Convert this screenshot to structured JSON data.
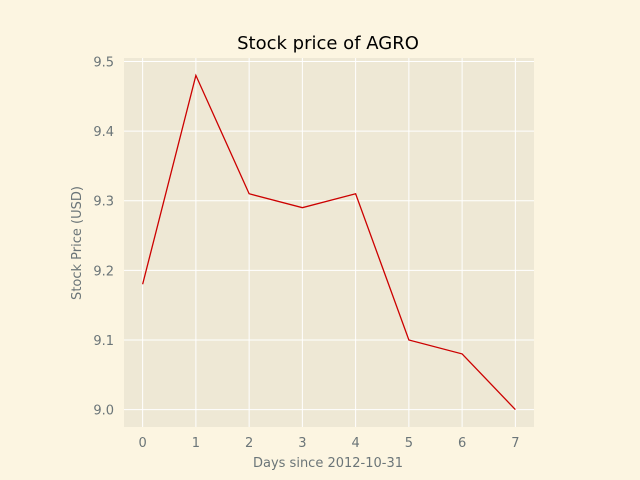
{
  "chart_data": {
    "type": "line",
    "title": "Stock price of AGRO",
    "xlabel": "Days since 2012-10-31",
    "ylabel": "Stock Price (USD)",
    "x": [
      0,
      1,
      2,
      3,
      4,
      5,
      6,
      7
    ],
    "series": [
      {
        "values": [
          9.18,
          9.48,
          9.31,
          9.29,
          9.31,
          9.1,
          9.08,
          9.0
        ]
      }
    ],
    "xlim": [
      -0.35,
      7.35
    ],
    "ylim": [
      8.975,
      9.505
    ],
    "xticks": [
      0,
      1,
      2,
      3,
      4,
      5,
      6,
      7
    ],
    "xtick_labels": [
      "0",
      "1",
      "2",
      "3",
      "4",
      "5",
      "6",
      "7"
    ],
    "yticks": [
      9.0,
      9.1,
      9.2,
      9.3,
      9.4,
      9.5
    ],
    "ytick_labels": [
      "9.0",
      "9.1",
      "9.2",
      "9.3",
      "9.4",
      "9.5"
    ],
    "grid": true,
    "colors": {
      "figure_bg": "#fcf5e1",
      "plot_bg": "#eee8d5",
      "grid": "#ffffff",
      "line": "#cc0000",
      "tick": "#6b7578"
    }
  }
}
